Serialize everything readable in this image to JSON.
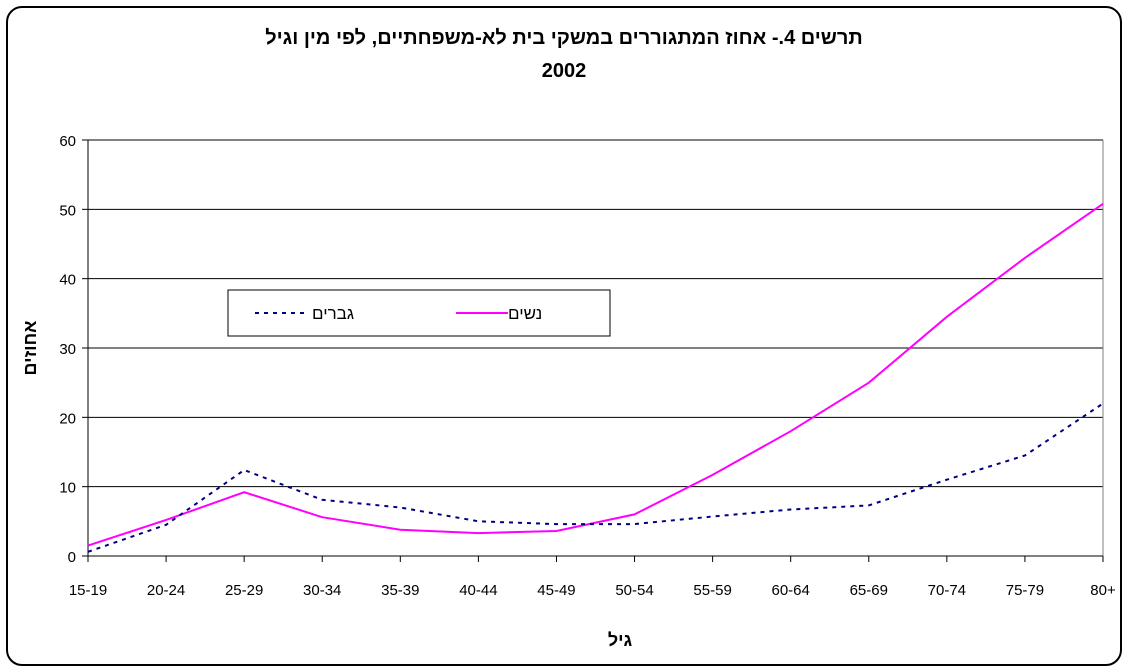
{
  "chart_data": {
    "type": "line",
    "title": "תרשים 4.- אחוז המתגוררים במשקי בית לא-משפחתיים, לפי מין וגיל",
    "subtitle": "2002",
    "xlabel": "גיל",
    "ylabel": "אחוזים",
    "categories": [
      "15-19",
      "20-24",
      "25-29",
      "30-34",
      "35-39",
      "40-44",
      "45-49",
      "50-54",
      "55-59",
      "60-64",
      "65-69",
      "70-74",
      "75-79",
      "80+"
    ],
    "ylim": [
      0,
      60
    ],
    "yticks": [
      0,
      10,
      20,
      30,
      40,
      50,
      60
    ],
    "grid": true,
    "legend_position": "inside-left",
    "series": [
      {
        "name": "נשים",
        "color": "#ff00ff",
        "style": "solid",
        "values": [
          1.5,
          5.2,
          9.2,
          5.6,
          3.8,
          3.3,
          3.6,
          6.0,
          11.7,
          18.0,
          25.0,
          34.5,
          43.0,
          50.8
        ]
      },
      {
        "name": "גברים",
        "color": "#000080",
        "style": "dotted",
        "values": [
          0.6,
          4.5,
          12.4,
          8.1,
          7.0,
          5.0,
          4.6,
          4.6,
          5.7,
          6.7,
          7.3,
          11.0,
          14.5,
          22.0
        ]
      }
    ]
  }
}
